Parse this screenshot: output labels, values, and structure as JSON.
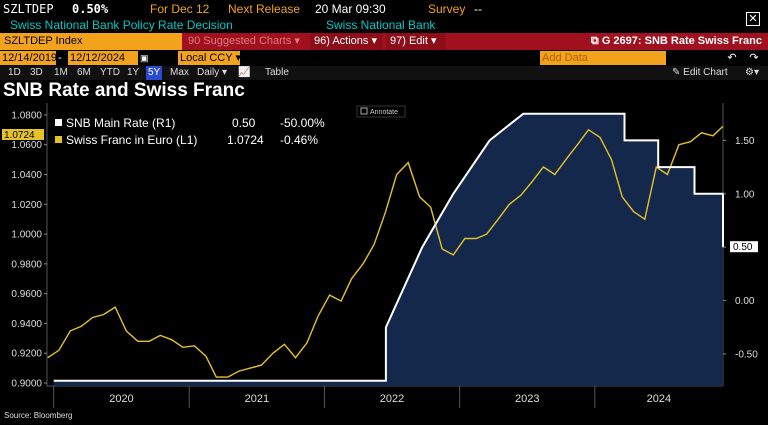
{
  "header": {
    "ticker": "SZLTDEP",
    "value": "0.50%",
    "for_label": "For Dec 12",
    "next_release_label": "Next Release",
    "next_release_date": "20 Mar 09:30",
    "survey_label": "Survey",
    "survey_value": "--",
    "description": "Swiss National Bank Policy Rate Decision",
    "source": "Swiss National Bank",
    "close_icon": "close-icon"
  },
  "command_bar": {
    "ticker_field": "SZLTDEP Index",
    "suggested": "90 Suggested Charts",
    "suggested_arrow": "▾",
    "actions": "96) Actions",
    "actions_arrow": "▾",
    "edit": "97) Edit",
    "edit_arrow": "▾",
    "graph_title": "G 2697: SNB Rate Swiss Franc",
    "graph_icon": "external-link-icon"
  },
  "date_row": {
    "start": "12/14/2019",
    "end": "12/12/2024",
    "currency": "Local CCY",
    "currency_arrow": "▾",
    "add_data": "Add Data",
    "back_icon": "undo-icon",
    "fwd_icon": "redo-icon"
  },
  "period_row": {
    "periods": [
      "1D",
      "3D",
      "1M",
      "6M",
      "YTD",
      "1Y",
      "5Y",
      "Max"
    ],
    "selected": "5Y",
    "frequency": "Daily",
    "frequency_arrow": "▾",
    "table": "Table",
    "edit_chart": "Edit Chart",
    "gear_icon": "gear-icon"
  },
  "title": "SNB Rate and Swiss Franc",
  "footer": "Source: Bloomberg",
  "annotate": "Annotate",
  "colors": {
    "rate": "#ffffff",
    "chf": "#e6c229",
    "area": "#13284a",
    "background": "#000000"
  },
  "chart_data": {
    "type": "line",
    "x_tick_labels": [
      "2020",
      "2021",
      "2022",
      "2023",
      "2024"
    ],
    "left_axis_ticks": [
      "1.0800",
      "1.0600",
      "1.0400",
      "1.0200",
      "1.0000",
      "0.9800",
      "0.9600",
      "0.9400",
      "0.9200",
      "0.9000"
    ],
    "right_axis_ticks": [
      "1.50",
      "1.00",
      "0.50",
      "0.00",
      "-0.50"
    ],
    "left_ylim": [
      0.898,
      1.088
    ],
    "right_ylim": [
      -0.8,
      1.85
    ],
    "xlim": [
      "2019-12-14",
      "2024-12-12"
    ],
    "legend": [
      {
        "name": "SNB Main Rate (R1)",
        "last": "0.50",
        "change": "-50.00%"
      },
      {
        "name": "Swiss Franc in Euro (L1)",
        "last": "1.0724",
        "change": "-0.46%"
      }
    ],
    "last_value_labels": {
      "left": "1.0724",
      "right": "0.50"
    },
    "series": [
      {
        "name": "SNB Main Rate (R1)",
        "axis": "right",
        "points": [
          [
            "2020-01-01",
            -0.75
          ],
          [
            "2022-06-16",
            -0.75
          ],
          [
            "2022-06-16",
            -0.25
          ],
          [
            "2022-09-22",
            0.5
          ],
          [
            "2022-12-15",
            1.0
          ],
          [
            "2023-03-23",
            1.5
          ],
          [
            "2023-06-22",
            1.75
          ],
          [
            "2023-09-21",
            1.75
          ],
          [
            "2024-03-21",
            1.75
          ],
          [
            "2024-03-21",
            1.5
          ],
          [
            "2024-06-20",
            1.5
          ],
          [
            "2024-06-20",
            1.25
          ],
          [
            "2024-09-26",
            1.25
          ],
          [
            "2024-09-26",
            1.0
          ],
          [
            "2024-12-12",
            1.0
          ],
          [
            "2024-12-12",
            0.5
          ]
        ]
      },
      {
        "name": "Swiss Franc in Euro (L1)",
        "axis": "left",
        "points": [
          [
            "2019-12-16",
            0.917
          ],
          [
            "2020-01-15",
            0.922
          ],
          [
            "2020-02-15",
            0.935
          ],
          [
            "2020-03-15",
            0.938
          ],
          [
            "2020-04-15",
            0.944
          ],
          [
            "2020-05-15",
            0.946
          ],
          [
            "2020-06-15",
            0.951
          ],
          [
            "2020-07-15",
            0.935
          ],
          [
            "2020-08-15",
            0.928
          ],
          [
            "2020-09-15",
            0.928
          ],
          [
            "2020-10-15",
            0.932
          ],
          [
            "2020-11-15",
            0.929
          ],
          [
            "2020-12-15",
            0.924
          ],
          [
            "2021-01-15",
            0.925
          ],
          [
            "2021-02-15",
            0.918
          ],
          [
            "2021-03-15",
            0.904
          ],
          [
            "2021-04-15",
            0.904
          ],
          [
            "2021-05-15",
            0.908
          ],
          [
            "2021-06-15",
            0.91
          ],
          [
            "2021-07-15",
            0.912
          ],
          [
            "2021-08-15",
            0.92
          ],
          [
            "2021-09-15",
            0.926
          ],
          [
            "2021-10-15",
            0.917
          ],
          [
            "2021-11-15",
            0.927
          ],
          [
            "2021-12-15",
            0.945
          ],
          [
            "2022-01-15",
            0.959
          ],
          [
            "2022-02-15",
            0.955
          ],
          [
            "2022-03-15",
            0.97
          ],
          [
            "2022-04-15",
            0.98
          ],
          [
            "2022-05-15",
            0.993
          ],
          [
            "2022-06-15",
            1.015
          ],
          [
            "2022-07-15",
            1.04
          ],
          [
            "2022-08-15",
            1.048
          ],
          [
            "2022-09-15",
            1.025
          ],
          [
            "2022-10-15",
            1.018
          ],
          [
            "2022-11-15",
            0.99
          ],
          [
            "2022-12-15",
            0.986
          ],
          [
            "2023-01-15",
            0.997
          ],
          [
            "2023-02-15",
            0.997
          ],
          [
            "2023-03-15",
            1.0
          ],
          [
            "2023-04-15",
            1.01
          ],
          [
            "2023-05-15",
            1.02
          ],
          [
            "2023-06-15",
            1.026
          ],
          [
            "2023-07-15",
            1.035
          ],
          [
            "2023-08-15",
            1.045
          ],
          [
            "2023-09-15",
            1.04
          ],
          [
            "2023-10-15",
            1.05
          ],
          [
            "2023-11-15",
            1.06
          ],
          [
            "2023-12-15",
            1.07
          ],
          [
            "2024-01-15",
            1.065
          ],
          [
            "2024-02-15",
            1.05
          ],
          [
            "2024-03-15",
            1.025
          ],
          [
            "2024-04-15",
            1.015
          ],
          [
            "2024-05-15",
            1.01
          ],
          [
            "2024-06-15",
            1.045
          ],
          [
            "2024-07-15",
            1.04
          ],
          [
            "2024-08-15",
            1.06
          ],
          [
            "2024-09-15",
            1.062
          ],
          [
            "2024-10-15",
            1.068
          ],
          [
            "2024-11-15",
            1.066
          ],
          [
            "2024-12-12",
            1.0724
          ]
        ]
      }
    ],
    "grid": false
  }
}
